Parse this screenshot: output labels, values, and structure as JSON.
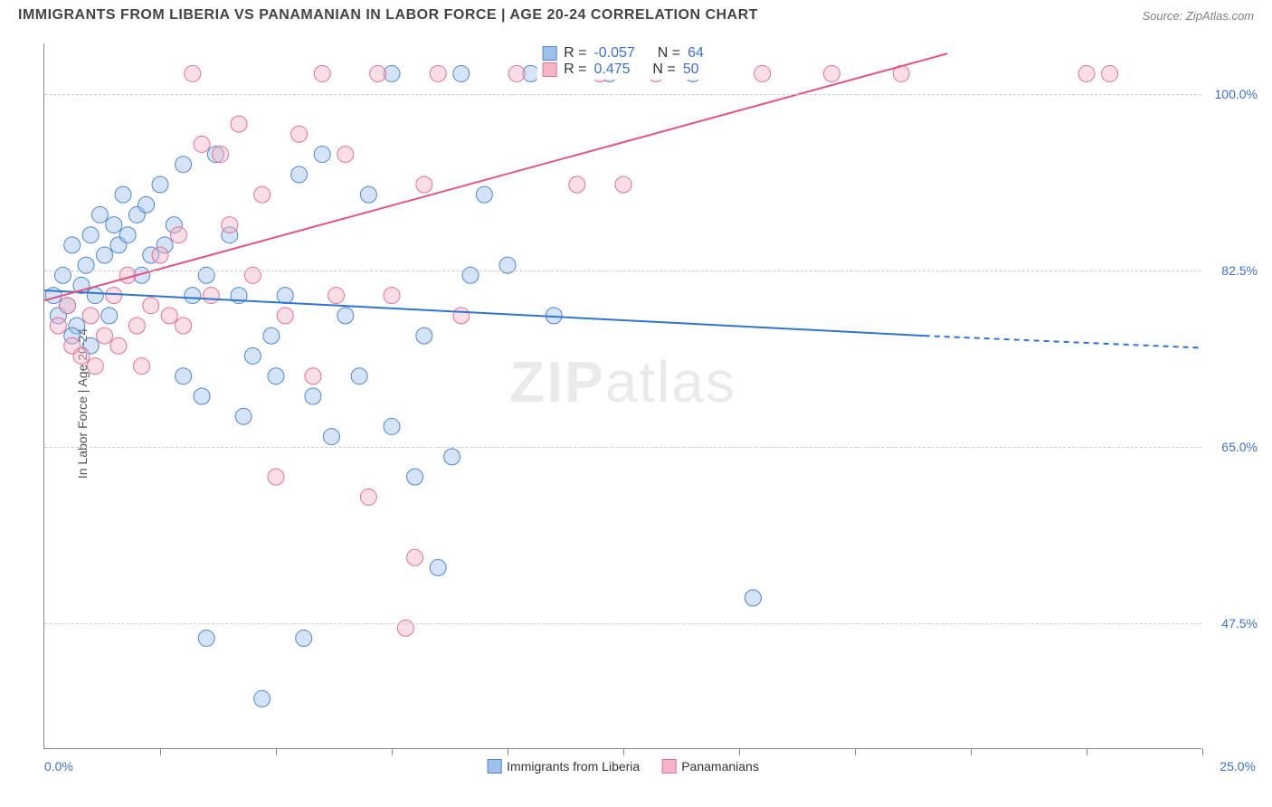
{
  "title": "IMMIGRANTS FROM LIBERIA VS PANAMANIAN IN LABOR FORCE | AGE 20-24 CORRELATION CHART",
  "source": "Source: ZipAtlas.com",
  "watermark_a": "ZIP",
  "watermark_b": "atlas",
  "ylabel": "In Labor Force | Age 20-24",
  "chart": {
    "type": "scatter",
    "xlim": [
      0,
      25
    ],
    "ylim": [
      35,
      105
    ],
    "xticks": [
      0,
      2.5,
      5,
      7.5,
      10,
      12.5,
      15,
      17.5,
      20,
      22.5,
      25
    ],
    "yticks": [
      47.5,
      65.0,
      82.5,
      100.0
    ],
    "ytick_labels": [
      "47.5%",
      "65.0%",
      "82.5%",
      "100.0%"
    ],
    "xlabel_min": "0.0%",
    "xlabel_max": "25.0%",
    "background_color": "#ffffff",
    "grid_color": "#cccccc",
    "marker_radius": 9,
    "marker_opacity": 0.45,
    "line_width": 2,
    "series": [
      {
        "name": "Immigrants from Liberia",
        "color_fill": "#9fc0ea",
        "color_stroke": "#4e86d4",
        "line_color": "#2e74d0",
        "R": "-0.057",
        "N": "64",
        "trend": {
          "x1": 0,
          "y1": 80.5,
          "x2": 19,
          "y2": 76.0,
          "dash_to_x": 25,
          "dash_to_y": 74.8
        },
        "points": [
          [
            0.2,
            80
          ],
          [
            0.3,
            78
          ],
          [
            0.4,
            82
          ],
          [
            0.5,
            79
          ],
          [
            0.6,
            85
          ],
          [
            0.7,
            77
          ],
          [
            0.8,
            81
          ],
          [
            0.9,
            83
          ],
          [
            1.0,
            86
          ],
          [
            1.1,
            80
          ],
          [
            1.2,
            88
          ],
          [
            1.3,
            84
          ],
          [
            1.4,
            78
          ],
          [
            1.5,
            87
          ],
          [
            1.6,
            85
          ],
          [
            1.7,
            90
          ],
          [
            1.8,
            86
          ],
          [
            2.0,
            88
          ],
          [
            2.1,
            82
          ],
          [
            2.2,
            89
          ],
          [
            2.3,
            84
          ],
          [
            2.5,
            91
          ],
          [
            2.6,
            85
          ],
          [
            2.8,
            87
          ],
          [
            3.0,
            93
          ],
          [
            3.0,
            72
          ],
          [
            3.2,
            80
          ],
          [
            3.4,
            70
          ],
          [
            3.5,
            82
          ],
          [
            3.5,
            46
          ],
          [
            3.7,
            94
          ],
          [
            4.0,
            86
          ],
          [
            4.2,
            80
          ],
          [
            4.3,
            68
          ],
          [
            4.5,
            74
          ],
          [
            4.7,
            40
          ],
          [
            4.9,
            76
          ],
          [
            5.0,
            72
          ],
          [
            5.2,
            80
          ],
          [
            5.5,
            92
          ],
          [
            5.6,
            46
          ],
          [
            5.8,
            70
          ],
          [
            6.0,
            94
          ],
          [
            6.2,
            66
          ],
          [
            6.5,
            78
          ],
          [
            6.8,
            72
          ],
          [
            7.0,
            90
          ],
          [
            7.5,
            67
          ],
          [
            7.5,
            102
          ],
          [
            8.0,
            62
          ],
          [
            8.2,
            76
          ],
          [
            8.5,
            53
          ],
          [
            8.8,
            64
          ],
          [
            9.0,
            102
          ],
          [
            9.2,
            82
          ],
          [
            9.5,
            90
          ],
          [
            10.0,
            83
          ],
          [
            10.5,
            102
          ],
          [
            11.0,
            78
          ],
          [
            12.2,
            102
          ],
          [
            14.0,
            102
          ],
          [
            15.3,
            50
          ],
          [
            1.0,
            75
          ],
          [
            0.6,
            76
          ]
        ]
      },
      {
        "name": "Panamanians",
        "color_fill": "#f4b6c6",
        "color_stroke": "#e66f95",
        "line_color": "#e55384",
        "R": "0.475",
        "N": "50",
        "trend": {
          "x1": 0,
          "y1": 79.5,
          "x2": 19.5,
          "y2": 104
        },
        "points": [
          [
            0.3,
            77
          ],
          [
            0.5,
            79
          ],
          [
            0.6,
            75
          ],
          [
            0.8,
            74
          ],
          [
            1.0,
            78
          ],
          [
            1.1,
            73
          ],
          [
            1.3,
            76
          ],
          [
            1.5,
            80
          ],
          [
            1.6,
            75
          ],
          [
            1.8,
            82
          ],
          [
            2.0,
            77
          ],
          [
            2.1,
            73
          ],
          [
            2.3,
            79
          ],
          [
            2.5,
            84
          ],
          [
            2.7,
            78
          ],
          [
            2.9,
            86
          ],
          [
            3.0,
            77
          ],
          [
            3.2,
            102
          ],
          [
            3.4,
            95
          ],
          [
            3.6,
            80
          ],
          [
            3.8,
            94
          ],
          [
            4.0,
            87
          ],
          [
            4.2,
            97
          ],
          [
            4.5,
            82
          ],
          [
            4.7,
            90
          ],
          [
            5.0,
            62
          ],
          [
            5.2,
            78
          ],
          [
            5.5,
            96
          ],
          [
            5.8,
            72
          ],
          [
            6.0,
            102
          ],
          [
            6.3,
            80
          ],
          [
            6.5,
            94
          ],
          [
            7.0,
            60
          ],
          [
            7.2,
            102
          ],
          [
            7.5,
            80
          ],
          [
            7.8,
            47
          ],
          [
            8.0,
            54
          ],
          [
            8.2,
            91
          ],
          [
            8.5,
            102
          ],
          [
            9.0,
            78
          ],
          [
            10.2,
            102
          ],
          [
            11.5,
            91
          ],
          [
            12.0,
            102
          ],
          [
            12.5,
            91
          ],
          [
            13.2,
            102
          ],
          [
            15.5,
            102
          ],
          [
            17.0,
            102
          ],
          [
            18.5,
            102
          ],
          [
            22.5,
            102
          ],
          [
            23.0,
            102
          ]
        ]
      }
    ]
  },
  "stats_labels": {
    "R": "R =",
    "N": "N ="
  },
  "colors": {
    "text_title": "#444444",
    "text_axis_value": "#3b6fd6",
    "text_axis_label": "#555555"
  }
}
